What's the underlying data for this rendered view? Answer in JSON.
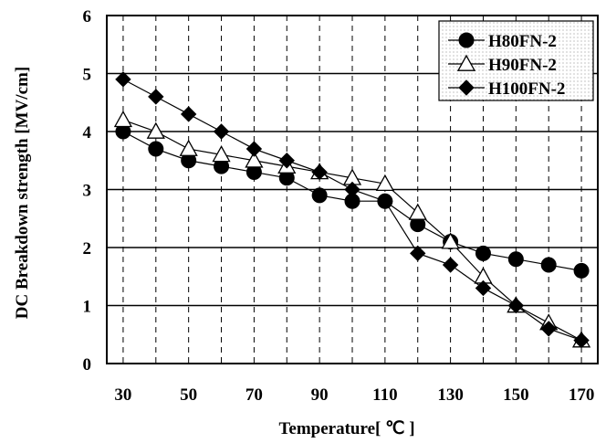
{
  "chart_data": {
    "type": "line",
    "title": "",
    "xlabel": "Temperature[ ℃ ]",
    "ylabel": "DC Breakdown strength [MV/cm]",
    "x": [
      30,
      40,
      50,
      60,
      70,
      80,
      90,
      100,
      110,
      120,
      130,
      140,
      150,
      160,
      170
    ],
    "xlim": [
      25,
      175
    ],
    "ylim": [
      0,
      6
    ],
    "x_ticks": [
      30,
      50,
      70,
      90,
      110,
      130,
      150,
      170
    ],
    "y_ticks": [
      0,
      1,
      2,
      3,
      4,
      5,
      6
    ],
    "grid": "vertical dashed lines every 10 °C; horizontal solid lines at each y tick",
    "legend_position": "top-right",
    "series": [
      {
        "name": "H80FN-2",
        "marker": "circle-filled",
        "values": [
          4.0,
          3.7,
          3.5,
          3.4,
          3.3,
          3.2,
          2.9,
          2.8,
          2.8,
          2.4,
          2.1,
          1.9,
          1.8,
          1.7,
          1.6
        ]
      },
      {
        "name": "H90FN-2",
        "marker": "triangle-open",
        "values": [
          4.2,
          4.0,
          3.7,
          3.6,
          3.5,
          3.4,
          3.3,
          3.2,
          3.1,
          2.6,
          2.1,
          1.5,
          1.0,
          0.7,
          0.4
        ]
      },
      {
        "name": "H100FN-2",
        "marker": "diamond-filled",
        "values": [
          4.9,
          4.6,
          4.3,
          4.0,
          3.7,
          3.5,
          3.3,
          3.0,
          2.8,
          1.9,
          1.7,
          1.3,
          1.0,
          0.6,
          0.4
        ]
      }
    ]
  }
}
